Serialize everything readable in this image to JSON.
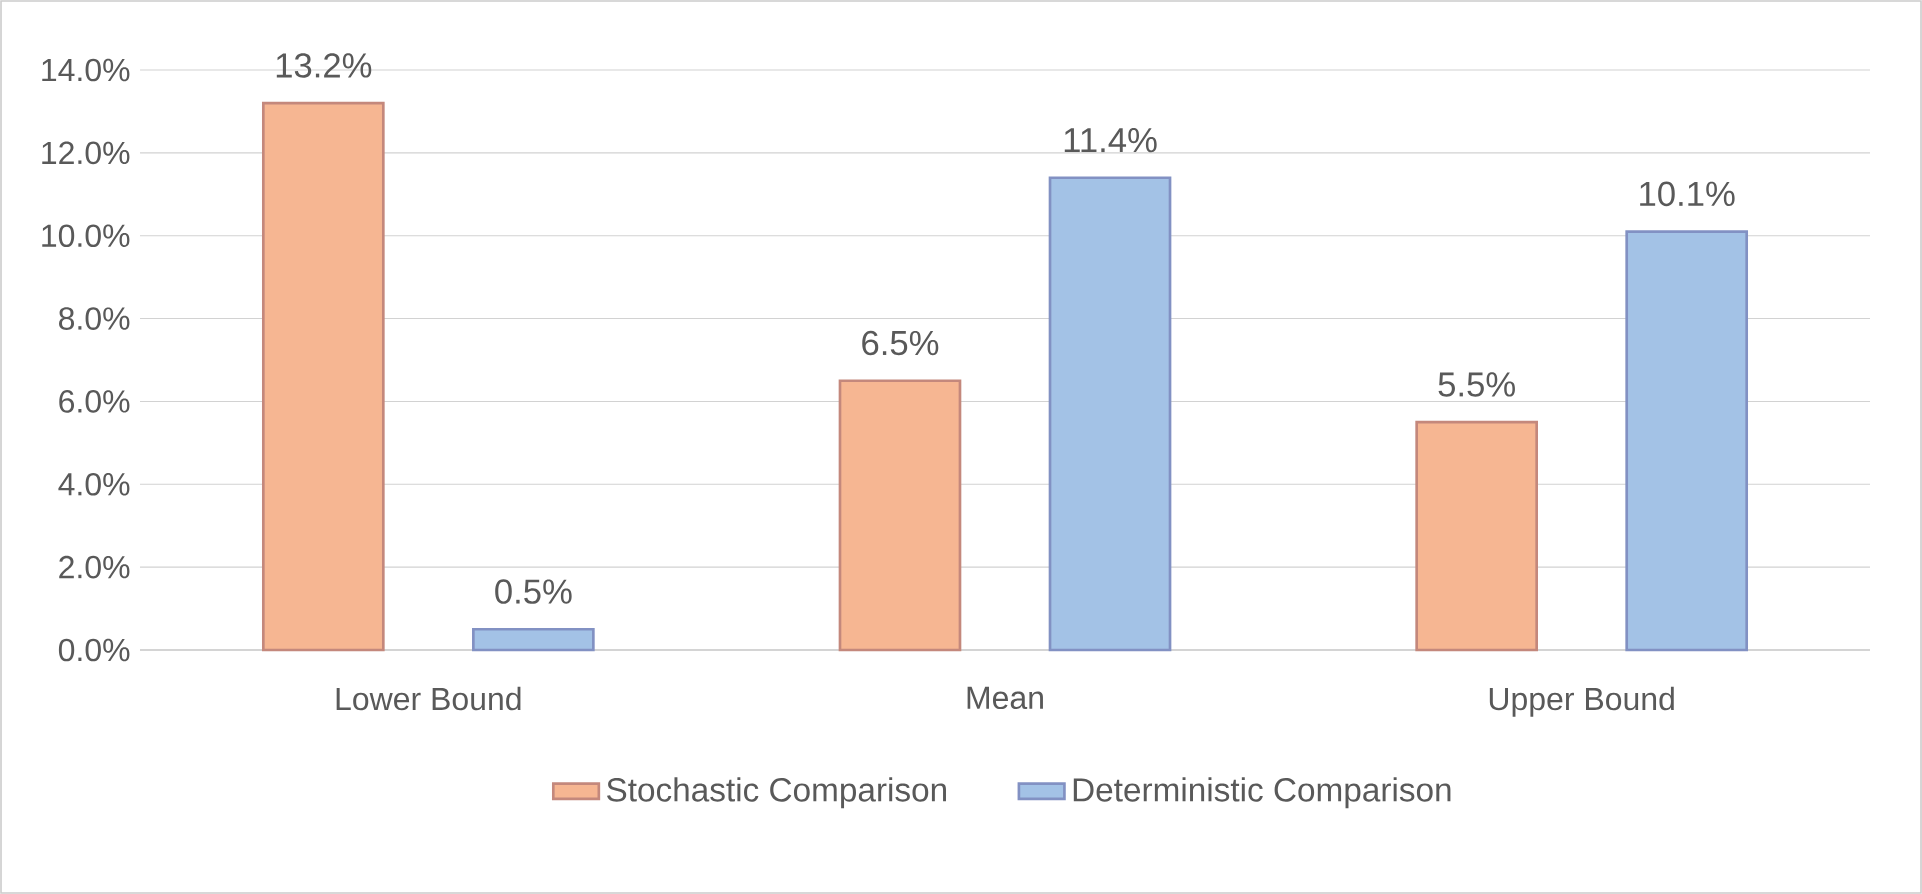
{
  "chart_data": {
    "type": "bar",
    "categories": [
      "Lower Bound",
      "Mean",
      "Upper Bound"
    ],
    "series": [
      {
        "name": "Stochastic Comparison",
        "color": "#f6b692",
        "values": [
          13.2,
          6.5,
          5.5
        ],
        "value_labels": [
          "13.2%",
          "6.5%",
          "5.5%"
        ]
      },
      {
        "name": "Deterministic Comparison",
        "color": "#a3c2e6",
        "values": [
          0.5,
          11.4,
          10.1
        ],
        "value_labels": [
          "0.5%",
          "11.4%",
          "10.1%"
        ]
      }
    ],
    "ylim": [
      0,
      14
    ],
    "yticks": [
      {
        "value": 0,
        "label": "0.0%"
      },
      {
        "value": 2,
        "label": "2.0%"
      },
      {
        "value": 4,
        "label": "4.0%"
      },
      {
        "value": 6,
        "label": "6.0%"
      },
      {
        "value": 8,
        "label": "8.0%"
      },
      {
        "value": 10,
        "label": "10.0%"
      },
      {
        "value": 12,
        "label": "12.0%"
      },
      {
        "value": 14,
        "label": "14.0%"
      }
    ],
    "grid": "y",
    "legend": "bottom"
  }
}
